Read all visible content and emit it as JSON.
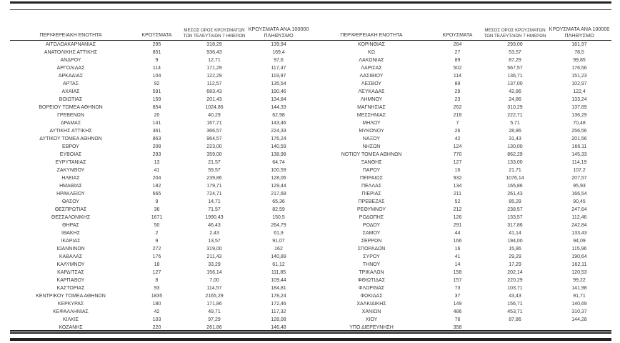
{
  "colors": {
    "ink": "#383838",
    "rule": "#222222"
  },
  "table": {
    "headers": {
      "region": "ΠΕΡΙΦΕΡΕΙΑΚΗ ΕΝΟΤΗΤΑ",
      "cases": "ΚΡΟΥΣΜΑΤΑ",
      "avg7_line1": "ΜΕΣΟΣ ΟΡΟΣ ΚΡΟΥΣΜΑΤΩΝ",
      "avg7_line2": "ΤΩΝ ΤΕΛΕΥΤΑΙΩΝ 7 ΗΜΕΡΩΝ",
      "per100k_line1": "ΚΡΟΥΣΜΑΤΑ ΑΝΑ 100000",
      "per100k_line2": "ΠΛΗΘΥΣΜΟ"
    },
    "left_rows": [
      [
        "ΑΙΤΩΛΟΑΚΑΡΝΑΝΙΑΣ",
        "295",
        "318,29",
        "139,94"
      ],
      [
        "ΑΝΑΤΟΛΙΚΗΣ ΑΤΤΙΚΗΣ",
        "851",
        "936,43",
        "169,4"
      ],
      [
        "ΑΝΔΡΟΥ",
        "9",
        "12,71",
        "97,6"
      ],
      [
        "ΑΡΓΟΛΙΔΑΣ",
        "114",
        "171,29",
        "117,47"
      ],
      [
        "ΑΡΚΑΔΙΑΣ",
        "104",
        "122,29",
        "119,97"
      ],
      [
        "ΑΡΤΑΣ",
        "92",
        "112,57",
        "135,54"
      ],
      [
        "ΑΧΑΪΑΣ",
        "591",
        "683,43",
        "190,46"
      ],
      [
        "ΒΟΙΩΤΙΑΣ",
        "159",
        "201,43",
        "134,84"
      ],
      [
        "ΒΟΡΕΙΟΥ ΤΟΜΕΑ ΑΘΗΝΩΝ",
        "854",
        "1024,86",
        "144,33"
      ],
      [
        "ΓΡΕΒΕΝΩΝ",
        "20",
        "40,29",
        "62,98"
      ],
      [
        "ΔΡΑΜΑΣ",
        "141",
        "167,71",
        "143,46"
      ],
      [
        "ΔΥΤΙΚΗΣ ΑΤΤΙΚΗΣ",
        "361",
        "366,57",
        "224,33"
      ],
      [
        "ΔΥΤΙΚΟΥ ΤΟΜΕΑ ΑΘΗΝΩΝ",
        "863",
        "964,57",
        "176,24"
      ],
      [
        "ΕΒΡΟΥ",
        "208",
        "223,00",
        "140,59"
      ],
      [
        "ΕΥΒΟΙΑΣ",
        "293",
        "359,00",
        "138,98"
      ],
      [
        "ΕΥΡΥΤΑΝΙΑΣ",
        "13",
        "21,57",
        "64,74"
      ],
      [
        "ΖΑΚΥΝΘΟΥ",
        "41",
        "59,57",
        "100,59"
      ],
      [
        "ΗΛΕΙΑΣ",
        "204",
        "239,86",
        "128,06"
      ],
      [
        "ΗΜΑΘΙΑΣ",
        "182",
        "179,71",
        "129,44"
      ],
      [
        "ΗΡΑΚΛΕΙΟΥ",
        "665",
        "724,71",
        "217,68"
      ],
      [
        "ΘΑΣΟΥ",
        "9",
        "14,71",
        "65,36"
      ],
      [
        "ΘΕΣΠΡΩΤΙΑΣ",
        "36",
        "71,57",
        "82,59"
      ],
      [
        "ΘΕΣΣΑΛΟΝΙΚΗΣ",
        "1671",
        "1990,43",
        "150,5"
      ],
      [
        "ΘΗΡΑΣ",
        "50",
        "46,43",
        "264,79"
      ],
      [
        "ΙΘΑΚΗΣ",
        "2",
        "2,43",
        "61,9"
      ],
      [
        "ΙΚΑΡΙΑΣ",
        "9",
        "13,57",
        "91,07"
      ],
      [
        "ΙΩΑΝΝΙΝΩΝ",
        "272",
        "319,00",
        "162"
      ],
      [
        "ΚΑΒΑΛΑΣ",
        "176",
        "211,43",
        "140,89"
      ],
      [
        "ΚΑΛΥΜΝΟΥ",
        "18",
        "33,29",
        "61,12"
      ],
      [
        "ΚΑΡΔΙΤΣΑΣ",
        "127",
        "156,14",
        "111,85"
      ],
      [
        "ΚΑΡΠΑΘΟΥ",
        "8",
        "7,00",
        "109,44"
      ],
      [
        "ΚΑΣΤΟΡΙΑΣ",
        "93",
        "114,57",
        "184,81"
      ],
      [
        "ΚΕΝΤΡΙΚΟΥ ΤΟΜΕΑ ΑΘΗΝΩΝ",
        "1835",
        "2165,29",
        "178,24"
      ],
      [
        "ΚΕΡΚΥΡΑΣ",
        "180",
        "171,86",
        "172,46"
      ],
      [
        "ΚΕΦΑΛΛΗΝΙΑΣ",
        "42",
        "49,71",
        "117,32"
      ],
      [
        "ΚΙΛΚΙΣ",
        "103",
        "97,29",
        "128,08"
      ],
      [
        "ΚΟΖΑΝΗΣ",
        "220",
        "261,86",
        "146,48"
      ]
    ],
    "right_rows": [
      [
        "ΚΟΡΙΝΘΙΑΣ",
        "264",
        "293,00",
        "181,97"
      ],
      [
        "ΚΩ",
        "27",
        "53,57",
        "78,5"
      ],
      [
        "ΛΑΚΩΝΙΑΣ",
        "89",
        "87,29",
        "99,85"
      ],
      [
        "ΛΑΡΙΣΑΣ",
        "502",
        "567,57",
        "176,56"
      ],
      [
        "ΛΑΣΙΘΙΟΥ",
        "114",
        "136,71",
        "151,23"
      ],
      [
        "ΛΕΣΒΟΥ",
        "89",
        "137,00",
        "102,97"
      ],
      [
        "ΛΕΥΚΑΔΑΣ",
        "29",
        "42,86",
        "122,4"
      ],
      [
        "ΛΗΜΝΟΥ",
        "23",
        "24,86",
        "133,24"
      ],
      [
        "ΜΑΓΝΗΣΙΑΣ",
        "262",
        "310,29",
        "137,89"
      ],
      [
        "ΜΕΣΣΗΝΙΑΣ",
        "218",
        "222,71",
        "136,29"
      ],
      [
        "ΜΗΛΟΥ",
        "7",
        "5,71",
        "70,48"
      ],
      [
        "ΜΥΚΟΝΟΥ",
        "26",
        "28,86",
        "256,56"
      ],
      [
        "ΝΑΞΟΥ",
        "42",
        "31,43",
        "201,56"
      ],
      [
        "ΝΗΣΩΝ",
        "124",
        "130,00",
        "166,11"
      ],
      [
        "ΝΟΤΙΟΥ ΤΟΜΕΑ ΑΘΗΝΩΝ",
        "770",
        "862,29",
        "145,33"
      ],
      [
        "ΞΑΝΘΗΣ",
        "127",
        "133,00",
        "114,19"
      ],
      [
        "ΠΑΡΟΥ",
        "16",
        "21,71",
        "107,2"
      ],
      [
        "ΠΕΙΡΑΙΩΣ",
        "932",
        "1076,14",
        "207,57"
      ],
      [
        "ΠΕΛΛΑΣ",
        "134",
        "165,86",
        "95,93"
      ],
      [
        "ΠΙΕΡΙΑΣ",
        "211",
        "261,43",
        "166,54"
      ],
      [
        "ΠΡΕΒΕΖΑΣ",
        "52",
        "85,29",
        "90,45"
      ],
      [
        "ΡΕΘΥΜΝΟΥ",
        "212",
        "238,57",
        "247,64"
      ],
      [
        "ΡΟΔΟΠΗΣ",
        "126",
        "133,57",
        "112,46"
      ],
      [
        "ΡΟΔΟΥ",
        "291",
        "317,86",
        "242,84"
      ],
      [
        "ΣΑΜΟΥ",
        "44",
        "41,14",
        "133,43"
      ],
      [
        "ΣΕΡΡΩΝ",
        "166",
        "194,00",
        "94,09"
      ],
      [
        "ΣΠΟΡΑΔΩΝ",
        "16",
        "15,86",
        "115,96"
      ],
      [
        "ΣΥΡΟΥ",
        "41",
        "29,29",
        "190,64"
      ],
      [
        "ΤΗΝΟΥ",
        "14",
        "17,29",
        "162,11"
      ],
      [
        "ΤΡΙΚΑΛΩΝ",
        "158",
        "202,14",
        "120,53"
      ],
      [
        "ΦΘΙΩΤΙΔΑΣ",
        "157",
        "220,29",
        "99,22"
      ],
      [
        "ΦΛΩΡΙΝΑΣ",
        "73",
        "103,71",
        "141,98"
      ],
      [
        "ΦΩΚΙΔΑΣ",
        "37",
        "43,43",
        "91,71"
      ],
      [
        "ΧΑΛΚΙΔΙΚΗΣ",
        "149",
        "156,71",
        "140,69"
      ],
      [
        "ΧΑΝΙΩΝ",
        "486",
        "453,71",
        "310,37"
      ],
      [
        "ΧΙΟΥ",
        "76",
        "87,86",
        "144,28"
      ],
      [
        "ΥΠΟ ΔΙΕΡΕΥΝΗΣΗ",
        "358",
        "",
        ""
      ]
    ]
  }
}
